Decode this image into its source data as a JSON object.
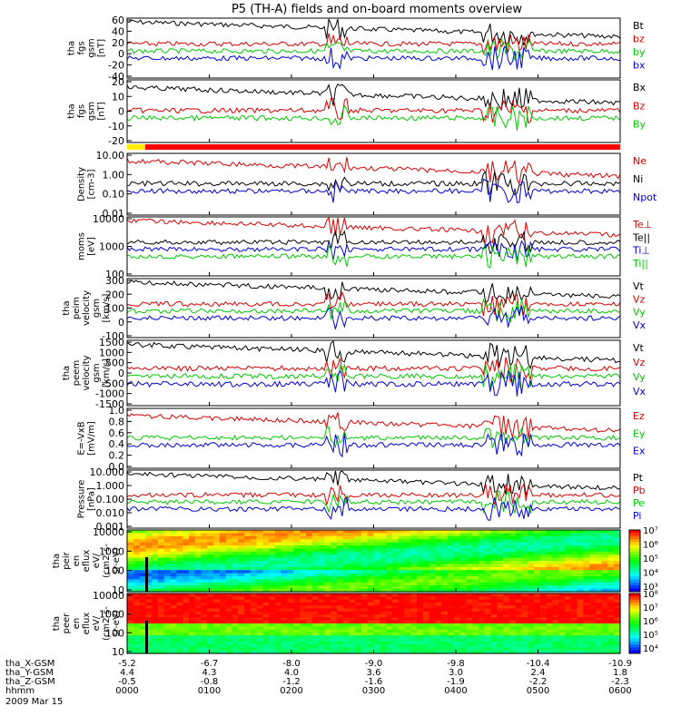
{
  "title": "P5 (TH-A) fields and on-board moments overview",
  "chart_data": {
    "type": "line",
    "x_label_rows": [
      "tha_X-GSM",
      "tha_Y-GSM",
      "tha_Z-GSM",
      "hhmm"
    ],
    "date": "2009 Mar 15",
    "ticks": [
      {
        "x": "-5.2",
        "y": "4.4",
        "z": "-0.5",
        "t": "0000"
      },
      {
        "x": "-6.7",
        "y": "4.3",
        "z": "-0.8",
        "t": "0100"
      },
      {
        "x": "-8.0",
        "y": "4.0",
        "z": "-1.2",
        "t": "0200"
      },
      {
        "x": "-9.0",
        "y": "3.6",
        "z": "-1.6",
        "t": "0300"
      },
      {
        "x": "-9.8",
        "y": "3.0",
        "z": "-1.9",
        "t": "0400"
      },
      {
        "x": "-10.4",
        "y": "2.4",
        "z": "-2.2",
        "t": "0500"
      },
      {
        "x": "-10.9",
        "y": "1.8",
        "z": "-2.3",
        "t": "0600"
      }
    ],
    "panels": [
      {
        "ylabel": [
          "tha",
          "fgs",
          "gsm",
          "[nT]"
        ],
        "yticks": [
          "60",
          "40",
          "20",
          "0",
          "-20",
          "-40"
        ],
        "legend": [
          {
            "name": "Bt",
            "color": "#000000"
          },
          {
            "name": "bz",
            "color": "#dd0000"
          },
          {
            "name": "by",
            "color": "#00cc00"
          },
          {
            "name": "bx",
            "color": "#0000dd"
          }
        ]
      },
      {
        "ylabel": [
          "tha",
          "fgs",
          "gsm",
          "[nT]"
        ],
        "yticks": [
          "20",
          "10",
          "0",
          "-10",
          "-20"
        ],
        "legend": [
          {
            "name": "Bx",
            "color": "#000000"
          },
          {
            "name": "Bz",
            "color": "#dd0000"
          },
          {
            "name": "By",
            "color": "#00cc00"
          }
        ]
      },
      {
        "ylabel": [
          "Density",
          "[cm-3]"
        ],
        "yticks": [
          "10.00",
          "1.00",
          "0.10",
          "0.01"
        ],
        "legend": [
          {
            "name": "Ne",
            "color": "#dd0000"
          },
          {
            "name": "Ni",
            "color": "#000000"
          },
          {
            "name": "Npot",
            "color": "#0000dd"
          }
        ]
      },
      {
        "ylabel": [
          "moms",
          "[eV]"
        ],
        "yticks": [
          "10000",
          "1000",
          "100"
        ],
        "legend": [
          {
            "name": "Te⊥",
            "color": "#dd0000"
          },
          {
            "name": "Te||",
            "color": "#000000"
          },
          {
            "name": "Ti⊥",
            "color": "#0000dd"
          },
          {
            "name": "Ti||",
            "color": "#00cc00"
          }
        ]
      },
      {
        "ylabel": [
          "tha",
          "peim",
          "velocity",
          "gsm",
          "[km/s]"
        ],
        "yticks": [
          "300",
          "200",
          "100",
          "0",
          "-100"
        ],
        "legend": [
          {
            "name": "Vt",
            "color": "#000000"
          },
          {
            "name": "Vz",
            "color": "#dd0000"
          },
          {
            "name": "Vy",
            "color": "#00cc00"
          },
          {
            "name": "Vx",
            "color": "#0000dd"
          }
        ]
      },
      {
        "ylabel": [
          "tha",
          "peem",
          "velocity",
          "gsm",
          "[km/s]"
        ],
        "yticks": [
          "1500",
          "1000",
          "500",
          "0",
          "-500",
          "-1000",
          "-1500"
        ],
        "legend": [
          {
            "name": "Vt",
            "color": "#000000"
          },
          {
            "name": "Vz",
            "color": "#dd0000"
          },
          {
            "name": "Vy",
            "color": "#00cc00"
          },
          {
            "name": "Vx",
            "color": "#0000dd"
          }
        ]
      },
      {
        "ylabel": [
          "E=-VxB",
          "[mV/m]"
        ],
        "yticks": [
          "1.0",
          "0.8",
          "0.6",
          "0.4",
          "0.2",
          "0.0"
        ],
        "legend": [
          {
            "name": "Ez",
            "color": "#dd0000"
          },
          {
            "name": "Ey",
            "color": "#00cc00"
          },
          {
            "name": "Ex",
            "color": "#0000dd"
          }
        ]
      },
      {
        "ylabel": [
          "Pressure",
          "[nPa]"
        ],
        "yticks": [
          "10.000",
          "1.000",
          "0.100",
          "0.010",
          "0.001"
        ],
        "legend": [
          {
            "name": "Pt",
            "color": "#000000"
          },
          {
            "name": "Pb",
            "color": "#dd0000"
          },
          {
            "name": "Pe",
            "color": "#00cc00"
          },
          {
            "name": "Pi",
            "color": "#0000dd"
          }
        ]
      },
      {
        "ylabel": [
          "tha",
          "peir",
          "en",
          "eflux",
          "eV/",
          "(cm2-s-",
          "sr-eV)"
        ],
        "yticks": [
          "10000",
          "1000",
          "100",
          "10"
        ],
        "colorbar": [
          "10⁷",
          "10⁶",
          "10⁵",
          "10⁴",
          "10³"
        ]
      },
      {
        "ylabel": [
          "tha",
          "peer",
          "en",
          "eflux",
          "eV/",
          "(cm2-s-",
          "sr-eV)"
        ],
        "yticks": [
          "10000",
          "1000",
          "100",
          "10"
        ],
        "colorbar": [
          "10⁸",
          "10⁷",
          "10⁶",
          "10⁵",
          "10⁴"
        ]
      }
    ]
  }
}
